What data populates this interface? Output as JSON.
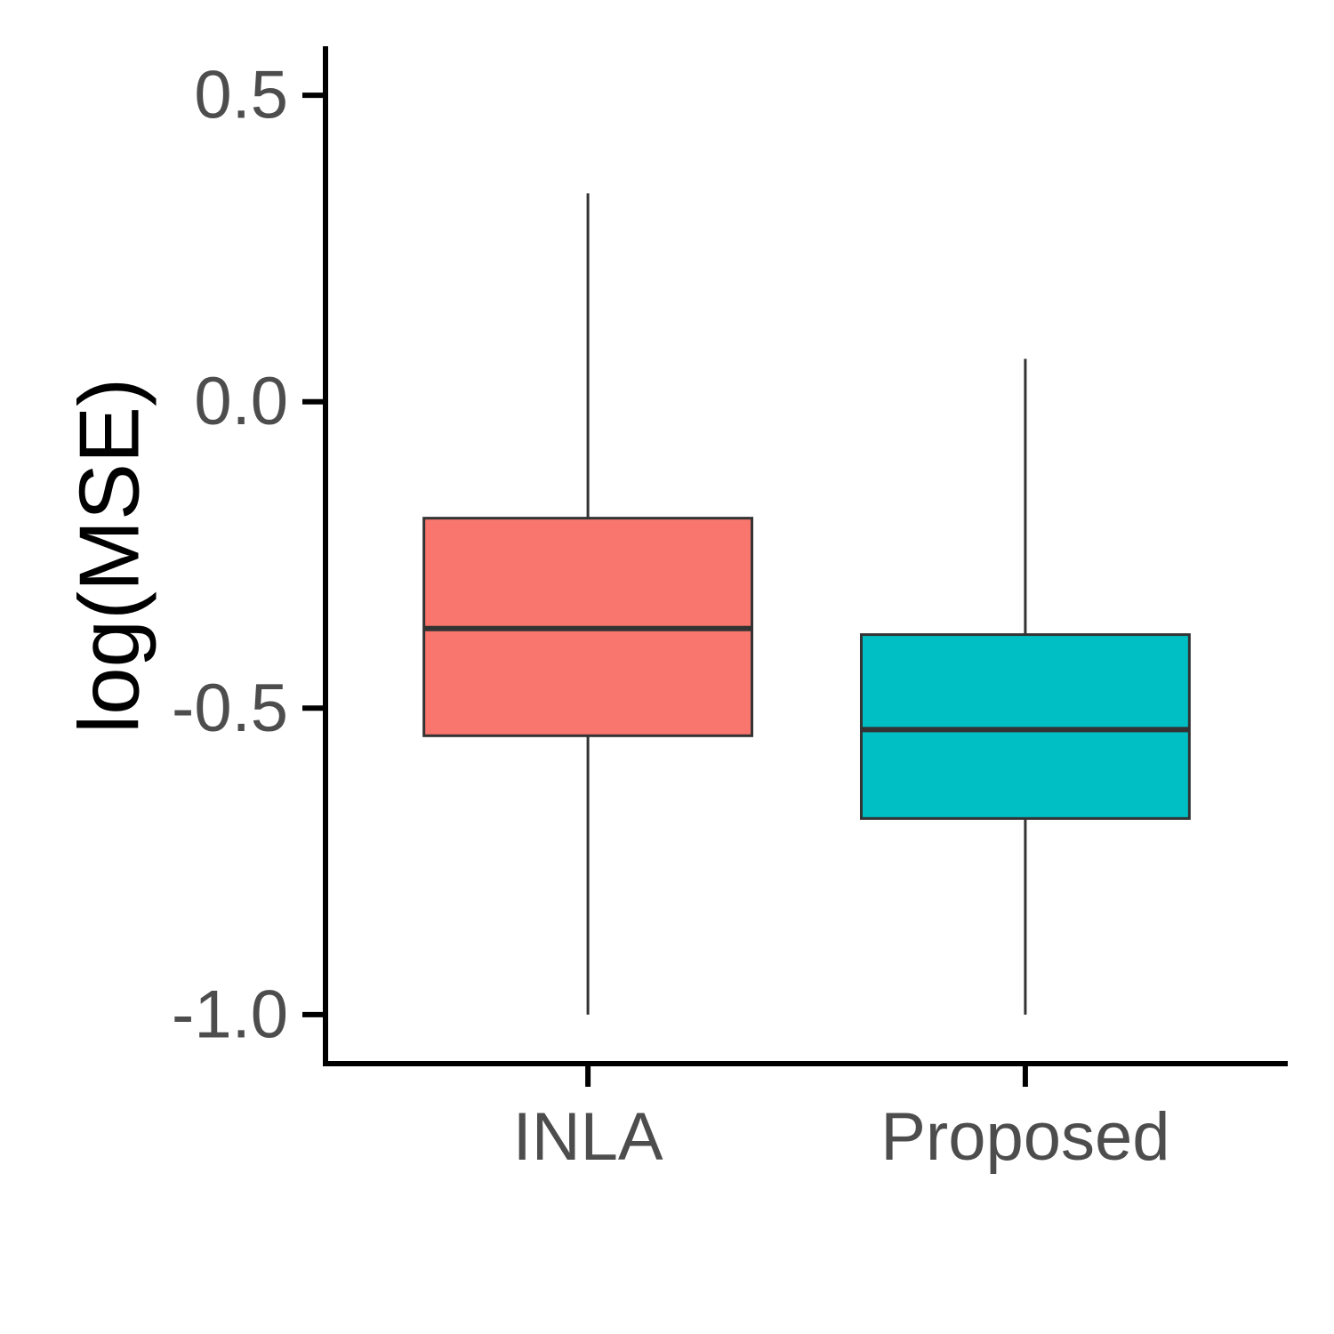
{
  "chart_data": {
    "type": "box",
    "title": "",
    "xlabel": "",
    "ylabel": "log(MSE)",
    "ylim": [
      -1.08,
      0.58
    ],
    "yticks": [
      -1.0,
      -0.5,
      0.0,
      0.5
    ],
    "ytick_labels": [
      "-1.0",
      "-0.5",
      "0.0",
      "0.5"
    ],
    "categories": [
      "INLA",
      "Proposed"
    ],
    "grid": false,
    "legend": "none",
    "boxes": [
      {
        "category": "INLA",
        "whisker_low": -1.0,
        "q1": -0.545,
        "median": -0.37,
        "q3": -0.19,
        "whisker_high": 0.34,
        "fill": "#F8766D"
      },
      {
        "category": "Proposed",
        "whisker_low": -1.0,
        "q1": -0.68,
        "median": -0.535,
        "q3": -0.38,
        "whisker_high": 0.07,
        "fill": "#00BFC4"
      }
    ],
    "colors": {
      "axis": "#000000",
      "box_outline": "#333333",
      "tick_text": "#4d4d4d"
    }
  }
}
